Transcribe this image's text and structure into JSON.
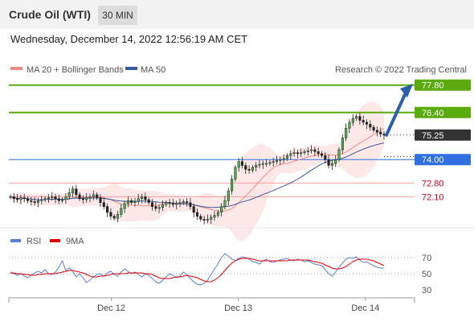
{
  "header": {
    "instrument": "Crude Oil (WTI)",
    "timeframe": "30 MIN"
  },
  "timestamp": "Wednesday, December 14, 2022 12:56:19 AM CET",
  "legend": {
    "ma20": "MA 20 + Bollinger Bands",
    "ma50": "MA 50"
  },
  "credit": "Research © 2022 Trading Central",
  "colors": {
    "ma20": "#f28b82",
    "ma50": "#3a5a9f",
    "resistance": "#5cab0e",
    "support_blue": "#2f6fe0",
    "support_red": "#d0021b",
    "last": "#333333",
    "rsi": "#5b7fd6",
    "rsi_ma": "#e00000"
  },
  "chart_data": [
    {
      "type": "candlestick",
      "title": "",
      "x_ticks": [
        "Dec 12",
        "Dec 13",
        "Dec 14"
      ],
      "price_levels": [
        {
          "label": "77.80",
          "value": 77.8,
          "kind": "resistance"
        },
        {
          "label": "76.40",
          "value": 76.4,
          "kind": "resistance"
        },
        {
          "label": "75.25",
          "value": 75.25,
          "kind": "last"
        },
        {
          "label": "74.00",
          "value": 74.0,
          "kind": "support-pivot"
        },
        {
          "label": "72.80",
          "value": 72.8,
          "kind": "support"
        },
        {
          "label": "72.10",
          "value": 72.1,
          "kind": "support"
        }
      ],
      "ylim": [
        70.8,
        78.2
      ],
      "close": [
        72.1,
        72.0,
        71.95,
        72.05,
        72.0,
        71.9,
        71.85,
        71.8,
        71.9,
        71.95,
        72.0,
        72.05,
        72.1,
        72.0,
        71.9,
        71.95,
        72.1,
        72.3,
        72.5,
        72.2,
        72.0,
        71.95,
        72.05,
        72.1,
        72.2,
        72.05,
        71.8,
        71.6,
        71.3,
        71.1,
        71.0,
        71.2,
        71.5,
        71.75,
        71.9,
        71.8,
        71.85,
        72.0,
        72.1,
        71.95,
        71.8,
        71.6,
        71.5,
        71.55,
        71.7,
        71.8,
        71.75,
        71.7,
        71.75,
        71.8,
        71.85,
        71.8,
        71.6,
        71.3,
        71.1,
        70.95,
        70.9,
        70.95,
        71.05,
        71.15,
        71.3,
        71.6,
        71.9,
        72.4,
        73.0,
        73.6,
        73.9,
        73.7,
        73.5,
        73.45,
        73.6,
        73.7,
        73.75,
        73.8,
        73.8,
        73.85,
        73.9,
        73.95,
        74.0,
        74.05,
        74.2,
        74.3,
        74.35,
        74.3,
        74.35,
        74.4,
        74.45,
        74.5,
        74.4,
        74.3,
        74.2,
        74.0,
        73.7,
        73.8,
        74.0,
        74.5,
        75.1,
        75.6,
        75.9,
        76.1,
        76.2,
        76.0,
        75.9,
        75.8,
        75.65,
        75.5,
        75.4,
        75.3,
        75.25
      ]
    },
    {
      "type": "line",
      "title": "",
      "series": [
        {
          "name": "RSI"
        },
        {
          "name": "9MA"
        }
      ],
      "y_ticks": [
        70,
        50,
        30
      ],
      "ylim": [
        22,
        78
      ],
      "rsi": [
        52,
        50,
        48,
        50,
        47,
        45,
        48,
        51,
        53,
        51,
        55,
        50,
        49,
        52,
        58,
        66,
        54,
        57,
        53,
        46,
        50,
        45,
        39,
        42,
        46,
        49,
        50,
        47,
        51,
        53,
        49,
        47,
        52,
        56,
        53,
        50,
        52,
        49,
        46,
        50,
        48,
        44,
        40,
        38,
        42,
        46,
        50,
        48,
        45,
        47,
        52,
        49,
        44,
        40,
        37,
        36,
        38,
        42,
        49,
        56,
        62,
        70,
        75,
        72,
        68,
        66,
        69,
        71,
        70,
        68,
        65,
        64,
        62,
        66,
        68,
        65,
        64,
        66,
        67,
        68,
        69,
        67,
        66,
        68,
        67,
        65,
        66,
        64,
        62,
        61,
        60,
        55,
        50,
        47,
        52,
        58,
        63,
        68,
        70,
        69,
        71,
        67,
        64,
        65,
        62,
        60,
        58,
        57,
        57
      ],
      "rsi_ma": [
        51,
        51,
        50,
        50,
        49,
        49,
        48,
        48,
        49,
        49,
        50,
        50,
        50,
        50,
        51,
        52,
        53,
        54,
        54,
        53,
        52,
        51,
        49,
        47,
        46,
        46,
        47,
        47,
        48,
        49,
        50,
        50,
        50,
        50,
        51,
        51,
        51,
        51,
        51,
        50,
        50,
        49,
        47,
        45,
        44,
        44,
        44,
        45,
        46,
        46,
        47,
        48,
        47,
        46,
        45,
        43,
        41,
        40,
        40,
        42,
        45,
        49,
        54,
        59,
        63,
        66,
        68,
        69,
        69,
        69,
        68,
        67,
        66,
        66,
        66,
        66,
        66,
        66,
        66,
        66,
        66,
        67,
        67,
        67,
        67,
        67,
        67,
        66,
        65,
        64,
        63,
        61,
        59,
        57,
        56,
        56,
        57,
        59,
        62,
        65,
        67,
        68,
        68,
        68,
        67,
        66,
        64,
        62,
        60
      ]
    }
  ]
}
